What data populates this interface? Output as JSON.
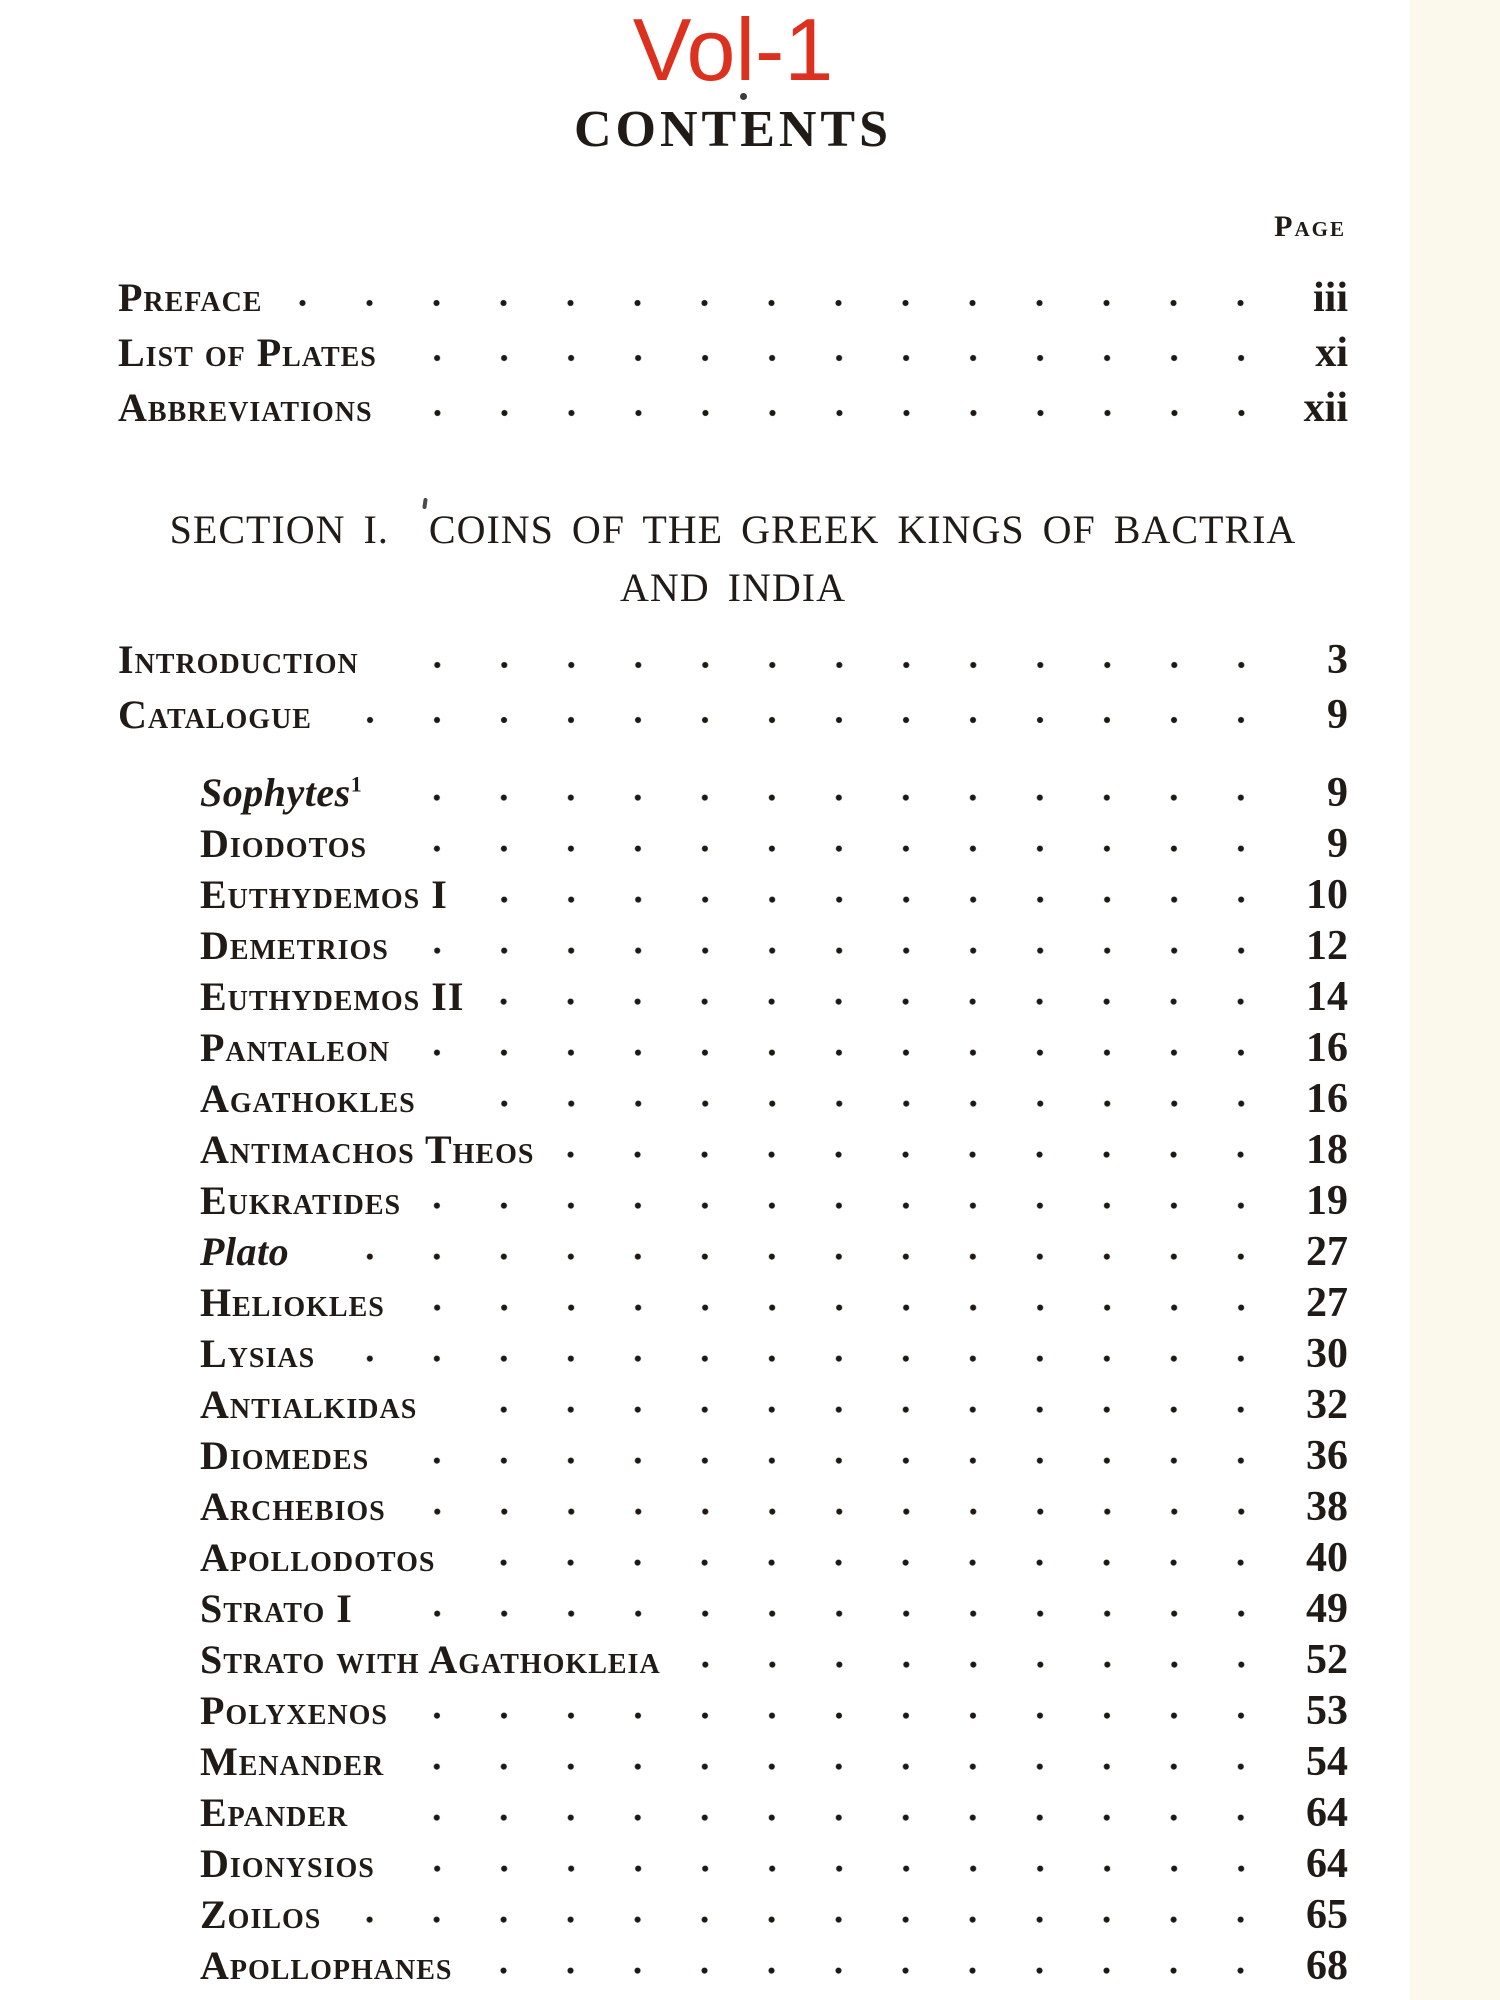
{
  "volume_label": "Vol-1",
  "title": "CONTENTS",
  "page_column_label": "Page",
  "front_matter": [
    {
      "label": "Preface",
      "page": "iii"
    },
    {
      "label": "List of Plates",
      "page": "xi"
    },
    {
      "label": "Abbreviations",
      "page": "xii"
    }
  ],
  "section": {
    "number": "SECTION I.",
    "title_line1": "COINS OF THE GREEK KINGS OF BACTRIA",
    "title_line2": "AND INDIA"
  },
  "main_entries": [
    {
      "label": "Introduction",
      "page": "3"
    },
    {
      "label": "Catalogue",
      "page": "9"
    }
  ],
  "catalogue_entries": [
    {
      "label": "Sophytes",
      "superscript": "1",
      "style": "italic",
      "page": "9"
    },
    {
      "label": "Diodotos",
      "page": "9"
    },
    {
      "label": "Euthydemos I",
      "page": "10"
    },
    {
      "label": "Demetrios",
      "page": "12"
    },
    {
      "label": "Euthydemos II",
      "page": "14"
    },
    {
      "label": "Pantaleon",
      "page": "16"
    },
    {
      "label": "Agathokles",
      "page": "16"
    },
    {
      "label": "Antimachos Theos",
      "page": "18"
    },
    {
      "label": "Eukratides",
      "page": "19"
    },
    {
      "label": "Plato",
      "style": "italic",
      "page": "27"
    },
    {
      "label": "Heliokles",
      "page": "27"
    },
    {
      "label": "Lysias",
      "page": "30"
    },
    {
      "label": "Antialkidas",
      "page": "32"
    },
    {
      "label": "Diomedes",
      "page": "36"
    },
    {
      "label": "Archebios",
      "page": "38"
    },
    {
      "label": "Apollodotos",
      "page": "40"
    },
    {
      "label": "Strato I",
      "page": "49"
    },
    {
      "label": "Strato with Agathokleia",
      "page": "52"
    },
    {
      "label": "Polyxenos",
      "page": "53"
    },
    {
      "label": "Menander",
      "page": "54"
    },
    {
      "label": "Epander",
      "page": "64"
    },
    {
      "label": "Dionysios",
      "page": "64"
    },
    {
      "label": "Zoilos",
      "page": "65"
    },
    {
      "label": "Apollophanes",
      "page": "68"
    }
  ],
  "colors": {
    "accent_red": "#dd3120",
    "ink": "#201b16",
    "paper": "#ffffff",
    "edge_tint": "#fbf8ec"
  }
}
